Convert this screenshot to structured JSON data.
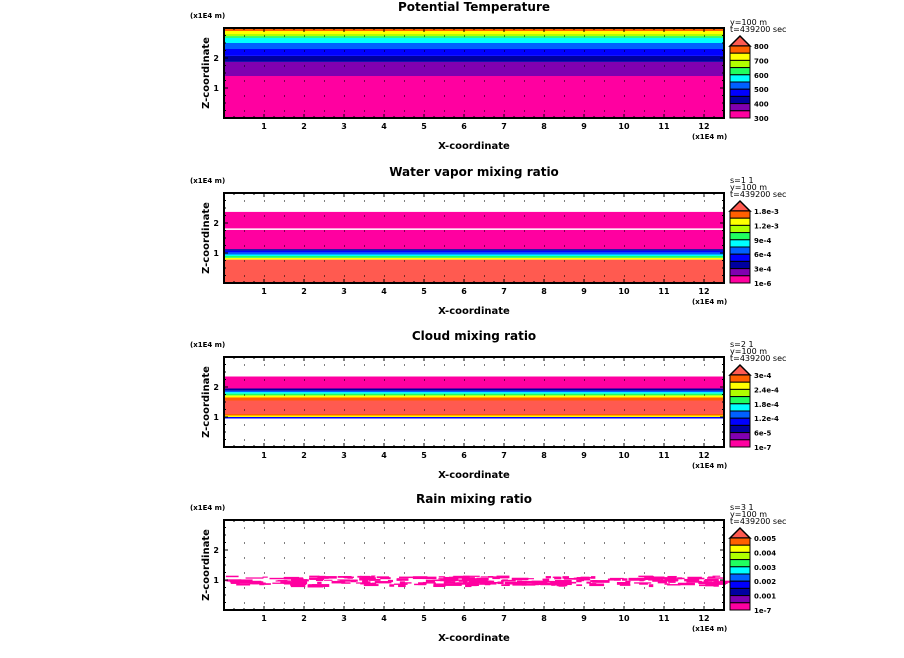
{
  "chart_data": [
    {
      "type": "heatmap",
      "title": "Potential Temperature",
      "xlabel": "X-coordinate",
      "ylabel": "Z-coordinate",
      "x_unit": "(x1E4 m)",
      "z_unit": "(x1E4 m)",
      "xlim": [
        0,
        12.5
      ],
      "ylim": [
        0,
        3
      ],
      "x_ticks": [
        "1",
        "2",
        "3",
        "4",
        "5",
        "6",
        "7",
        "8",
        "9",
        "10",
        "11",
        "12"
      ],
      "y_ticks": [
        "1",
        "2"
      ],
      "header": [
        "y=100 m",
        "t=439200 sec"
      ],
      "legend_labels": [
        "800",
        "700",
        "600",
        "500",
        "400",
        "300"
      ],
      "bands": [
        {
          "z": [
            0,
            1.4
          ],
          "color": "#ff00a0"
        },
        {
          "z": [
            1.4,
            1.87
          ],
          "color": "#8000b0"
        },
        {
          "z": [
            1.87,
            2.07
          ],
          "color": "#0000a0"
        },
        {
          "z": [
            2.07,
            2.3
          ],
          "color": "#0000ff"
        },
        {
          "z": [
            2.3,
            2.5
          ],
          "color": "#0060ff"
        },
        {
          "z": [
            2.5,
            2.67
          ],
          "color": "#00ffff"
        },
        {
          "z": [
            2.67,
            2.73
          ],
          "color": "#20ff60"
        },
        {
          "z": [
            2.73,
            2.8
          ],
          "color": "#b0ff00"
        },
        {
          "z": [
            2.8,
            2.9
          ],
          "color": "#ffff00"
        },
        {
          "z": [
            2.9,
            3.0
          ],
          "color": "#ff6000"
        }
      ],
      "noise": null
    },
    {
      "type": "heatmap",
      "title": "Water vapor mixing ratio",
      "xlabel": "X-coordinate",
      "ylabel": "Z-coordinate",
      "x_unit": "(x1E4 m)",
      "z_unit": "(x1E4 m)",
      "xlim": [
        0,
        12.5
      ],
      "ylim": [
        0,
        3
      ],
      "x_ticks": [
        "1",
        "2",
        "3",
        "4",
        "5",
        "6",
        "7",
        "8",
        "9",
        "10",
        "11",
        "12"
      ],
      "y_ticks": [
        "1",
        "2"
      ],
      "header": [
        "s=1 1",
        "y=100 m",
        "t=439200 sec"
      ],
      "legend_labels": [
        "1.8e-3",
        "1.2e-3",
        "9e-4",
        "6e-4",
        "3e-4",
        "1e-6"
      ],
      "bands": [
        {
          "z": [
            0,
            0.78
          ],
          "color": "#ff5a50"
        },
        {
          "z": [
            0.78,
            0.84
          ],
          "color": "#ffff00"
        },
        {
          "z": [
            0.84,
            0.9
          ],
          "color": "#20ff60"
        },
        {
          "z": [
            0.9,
            0.95
          ],
          "color": "#00ffff"
        },
        {
          "z": [
            0.95,
            1.02
          ],
          "color": "#0060ff"
        },
        {
          "z": [
            1.02,
            1.08
          ],
          "color": "#0000ff"
        },
        {
          "z": [
            1.08,
            1.13
          ],
          "color": "#0000a0"
        },
        {
          "z": [
            1.13,
            1.77
          ],
          "color": "#ff00a0"
        },
        {
          "z": [
            1.82,
            2.37
          ],
          "color": "#ff00a0"
        }
      ],
      "noise": null
    },
    {
      "type": "heatmap",
      "title": "Cloud mixing ratio",
      "xlabel": "X-coordinate",
      "ylabel": "Z-coordinate",
      "x_unit": "(x1E4 m)",
      "z_unit": "(x1E4 m)",
      "xlim": [
        0,
        12.5
      ],
      "ylim": [
        0,
        3
      ],
      "x_ticks": [
        "1",
        "2",
        "3",
        "4",
        "5",
        "6",
        "7",
        "8",
        "9",
        "10",
        "11",
        "12"
      ],
      "y_ticks": [
        "1",
        "2"
      ],
      "header": [
        "s=2 1",
        "y=100 m",
        "t=439200 sec"
      ],
      "legend_labels": [
        "3e-4",
        "2.4e-4",
        "1.8e-4",
        "1.2e-4",
        "6e-5",
        "1e-7"
      ],
      "bands": [
        {
          "z": [
            0.95,
            1.0
          ],
          "color": "#0000ff"
        },
        {
          "z": [
            1.0,
            1.05
          ],
          "color": "#ffff00"
        },
        {
          "z": [
            1.05,
            1.1
          ],
          "color": "#ff6000"
        },
        {
          "z": [
            1.1,
            1.55
          ],
          "color": "#ff5a50"
        },
        {
          "z": [
            1.55,
            1.65
          ],
          "color": "#ff6000"
        },
        {
          "z": [
            1.65,
            1.72
          ],
          "color": "#ffff00"
        },
        {
          "z": [
            1.72,
            1.78
          ],
          "color": "#20ff60"
        },
        {
          "z": [
            1.78,
            1.83
          ],
          "color": "#00ffff"
        },
        {
          "z": [
            1.83,
            1.88
          ],
          "color": "#0060ff"
        },
        {
          "z": [
            1.88,
            1.95
          ],
          "color": "#0000a0"
        },
        {
          "z": [
            1.95,
            2.35
          ],
          "color": "#ff00a0"
        }
      ],
      "noise": null
    },
    {
      "type": "heatmap",
      "title": "Rain mixing ratio",
      "xlabel": "X-coordinate",
      "ylabel": "Z-coordinate",
      "x_unit": "(x1E4 m)",
      "z_unit": "(x1E4 m)",
      "xlim": [
        0,
        12.5
      ],
      "ylim": [
        0,
        3
      ],
      "x_ticks": [
        "1",
        "2",
        "3",
        "4",
        "5",
        "6",
        "7",
        "8",
        "9",
        "10",
        "11",
        "12"
      ],
      "y_ticks": [
        "1",
        "2"
      ],
      "header": [
        "s=3 1",
        "y=100 m",
        "t=439200 sec"
      ],
      "legend_labels": [
        "0.005",
        "0.004",
        "0.003",
        "0.002",
        "0.001",
        "1e-7"
      ],
      "bands": [],
      "noise": {
        "z": [
          0.85,
          1.15
        ],
        "color": "#ff00a0"
      }
    }
  ],
  "colorbar": [
    "#ff6000",
    "#ffff00",
    "#b0ff00",
    "#20ff60",
    "#00ffff",
    "#0060ff",
    "#0000ff",
    "#0000a0",
    "#8000b0",
    "#ff00a0"
  ],
  "colorbar_over": "#ff5a50"
}
